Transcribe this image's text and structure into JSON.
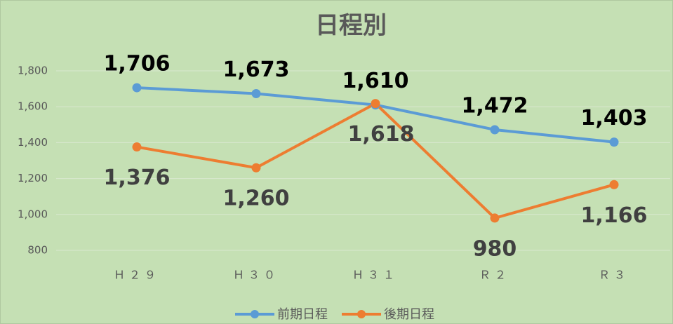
{
  "chart_data": {
    "type": "line",
    "title": "日程別",
    "categories": [
      "Ｈ２９",
      "Ｈ３０",
      "Ｈ３１",
      "Ｒ２",
      "Ｒ３"
    ],
    "series": [
      {
        "name": "前期日程",
        "color": "#5b9bd5",
        "values": [
          1706,
          1673,
          1610,
          1472,
          1403
        ],
        "value_labels": [
          "1,706",
          "1,673",
          "1,610",
          "1,472",
          "1,403"
        ]
      },
      {
        "name": "後期日程",
        "color": "#ed7d31",
        "values": [
          1376,
          1260,
          1618,
          980,
          1166
        ],
        "value_labels": [
          "1,376",
          "1,260",
          "1,618",
          "980",
          "1,166"
        ]
      }
    ],
    "ylim": [
      800,
      1800
    ],
    "yticks": [
      {
        "value": 800,
        "label": "800"
      },
      {
        "value": 1000,
        "label": "1,000"
      },
      {
        "value": 1200,
        "label": "1,200"
      },
      {
        "value": 1400,
        "label": "1,400"
      },
      {
        "value": 1600,
        "label": "1,600"
      },
      {
        "value": 1800,
        "label": "1,800"
      }
    ],
    "grid": true,
    "legend": "bottom"
  }
}
